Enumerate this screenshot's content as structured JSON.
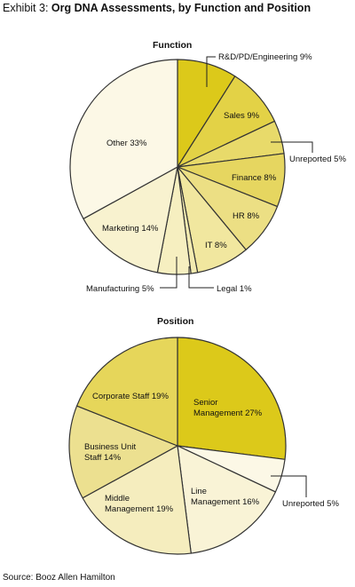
{
  "header": {
    "exhibit_label": "Exhibit 3:",
    "title": "Org DNA Assessments, by Function and Position"
  },
  "footer": {
    "source": "Source: Booz Allen Hamilton"
  },
  "chart_data": [
    {
      "type": "pie",
      "title": "Function",
      "unit": "%",
      "slices": [
        {
          "label": "R&D/PD/Engineering",
          "value": 9,
          "text": "R&D/PD/Engineering 9%",
          "color": "#dcc91a"
        },
        {
          "label": "Sales",
          "value": 9,
          "text": "Sales 9%",
          "color": "#e3d246"
        },
        {
          "label": "Unreported",
          "value": 5,
          "text": "Unreported 5%",
          "color": "#e8da6a"
        },
        {
          "label": "Finance",
          "value": 8,
          "text": "Finance 8%",
          "color": "#e6d660"
        },
        {
          "label": "HR",
          "value": 8,
          "text": "HR 8%",
          "color": "#ecdf84"
        },
        {
          "label": "IT",
          "value": 8,
          "text": "IT 8%",
          "color": "#f1e79f"
        },
        {
          "label": "Legal",
          "value": 1,
          "text": "Legal 1%",
          "color": "#f3ebb0"
        },
        {
          "label": "Manufacturing",
          "value": 5,
          "text": "Manufacturing 5%",
          "color": "#f6efc0"
        },
        {
          "label": "Marketing",
          "value": 14,
          "text": "Marketing 14%",
          "color": "#f8f2cf"
        },
        {
          "label": "Other",
          "value": 33,
          "text": "Other 33%",
          "color": "#fcf8e6"
        }
      ]
    },
    {
      "type": "pie",
      "title": "Position",
      "unit": "%",
      "slices": [
        {
          "label": "Senior Management",
          "value": 27,
          "text_lines": [
            "Senior",
            "Management 27%"
          ],
          "color": "#dcc91a"
        },
        {
          "label": "Unreported",
          "value": 5,
          "text_lines": [
            "Unreported 5%"
          ],
          "color": "#fcf8e6"
        },
        {
          "label": "Line Management",
          "value": 16,
          "text_lines": [
            "Line",
            "Management 16%"
          ],
          "color": "#f9f3d6"
        },
        {
          "label": "Middle Management",
          "value": 19,
          "text_lines": [
            "Middle",
            "Management 19%"
          ],
          "color": "#f5edbe"
        },
        {
          "label": "Business Unit Staff",
          "value": 14,
          "text_lines": [
            "Business Unit",
            "Staff 14%"
          ],
          "color": "#ece090"
        },
        {
          "label": "Corporate Staff",
          "value": 19,
          "text_lines": [
            "Corporate Staff 19%"
          ],
          "color": "#e6d65a"
        }
      ]
    }
  ]
}
